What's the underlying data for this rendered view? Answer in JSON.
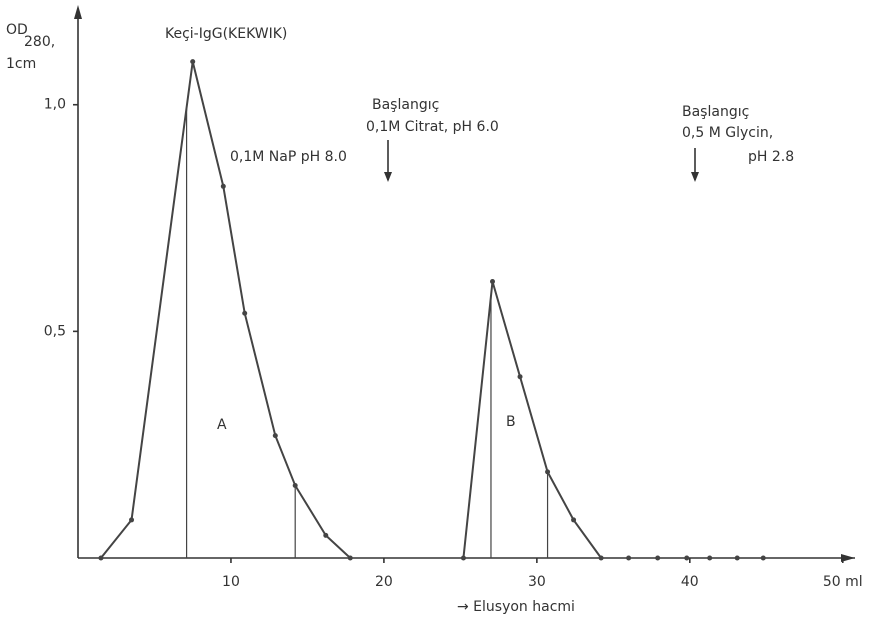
{
  "chart_data": {
    "type": "line",
    "y_label": [
      "OD",
      "280,",
      "1cm"
    ],
    "x_label": "→ Elusyon hacmi",
    "annotations": {
      "peak": "Keçi-IgG(KEKWIK)",
      "buffer_a": "0,1M NaP pH 8.0",
      "start_b": [
        "Başlangıç",
        "0,1M Citrat, pH 6.0"
      ],
      "start_c": [
        "Başlangıç",
        "0,5 M Glycin,",
        "pH 2.8"
      ],
      "label_a": "A",
      "label_b": "B"
    },
    "color": "#444444",
    "series": [
      {
        "x": [
          1.5,
          3.5,
          7.5,
          9.5,
          10.9,
          12.9,
          14.2,
          16.2,
          17.8
        ],
        "values": [
          0,
          0.084,
          1.095,
          0.82,
          0.54,
          0.27,
          0.16,
          0.05,
          0
        ],
        "line": true
      },
      {
        "x": [
          25.2,
          27.1,
          28.9,
          30.7,
          32.4,
          34.2
        ],
        "values": [
          0,
          0.61,
          0.4,
          0.19,
          0.084,
          0
        ],
        "line": true
      },
      {
        "x": [
          36,
          37.9,
          39.8,
          41.3,
          43.1,
          44.8
        ],
        "values": [
          0,
          0,
          0,
          0,
          0,
          0
        ],
        "line": false
      }
    ],
    "fraction_x": [
      7.1,
      14.2,
      27,
      30.7
    ],
    "xlim": [
      0,
      50.8
    ],
    "ylim": [
      0,
      1.22
    ],
    "xticks": [
      10,
      20,
      30,
      40,
      {
        "value": 50,
        "label": "50 ml"
      }
    ],
    "yticks": [
      {
        "value": 0.5,
        "label": "0,5"
      },
      {
        "value": 1,
        "label": "1,0"
      }
    ]
  }
}
